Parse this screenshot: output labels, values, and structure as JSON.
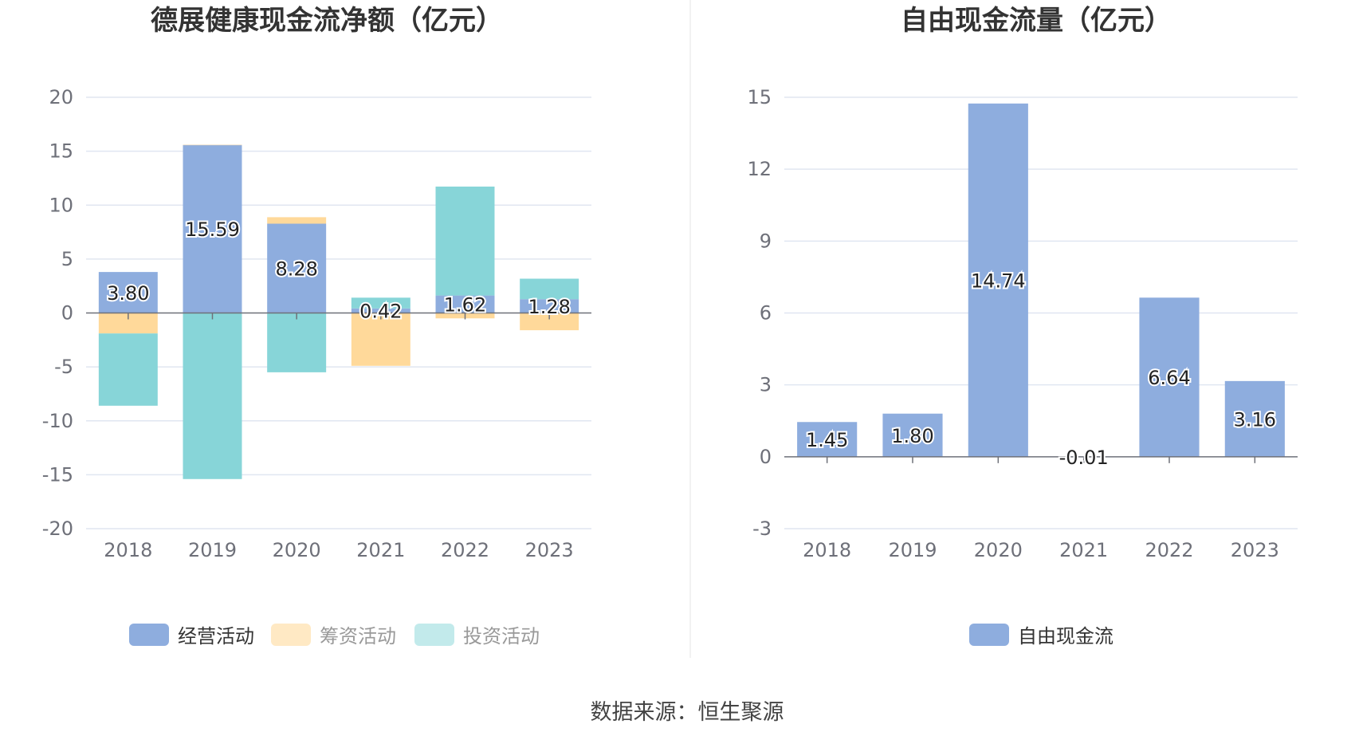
{
  "source": "数据来源：恒生聚源",
  "chart_data": [
    {
      "type": "bar",
      "stacked": true,
      "title": "德展健康现金流净额（亿元）",
      "categories": [
        "2018",
        "2019",
        "2020",
        "2021",
        "2022",
        "2023"
      ],
      "ylim": [
        -20,
        20
      ],
      "yticks": [
        20,
        15,
        10,
        5,
        0,
        -5,
        -10,
        -15,
        -20
      ],
      "legend_position": "bottom",
      "series": [
        {
          "name": "经营活动",
          "color": "#8eadde",
          "values": [
            3.8,
            15.59,
            8.28,
            0.42,
            1.62,
            1.28
          ],
          "labels": [
            "3.80",
            "15.59",
            "8.28",
            "0.42",
            "1.62",
            "1.28"
          ]
        },
        {
          "name": "筹资活动",
          "color": "#ffd99a",
          "values": [
            -1.9,
            0.0,
            0.6,
            -4.9,
            -0.5,
            -1.6
          ]
        },
        {
          "name": "投资活动",
          "color": "#87d5d8",
          "values": [
            -6.7,
            -15.4,
            -5.5,
            1.0,
            10.1,
            1.9
          ]
        }
      ]
    },
    {
      "type": "bar",
      "title": "自由现金流量（亿元）",
      "categories": [
        "2018",
        "2019",
        "2020",
        "2021",
        "2022",
        "2023"
      ],
      "ylim": [
        -3,
        15
      ],
      "yticks": [
        15,
        12,
        9,
        6,
        3,
        0,
        -3
      ],
      "legend_position": "bottom",
      "series": [
        {
          "name": "自由现金流",
          "color": "#8eadde",
          "values": [
            1.45,
            1.8,
            14.74,
            -0.01,
            6.64,
            3.16
          ],
          "labels": [
            "1.45",
            "1.80",
            "14.74",
            "-0.01",
            "6.64",
            "3.16"
          ]
        }
      ]
    }
  ]
}
